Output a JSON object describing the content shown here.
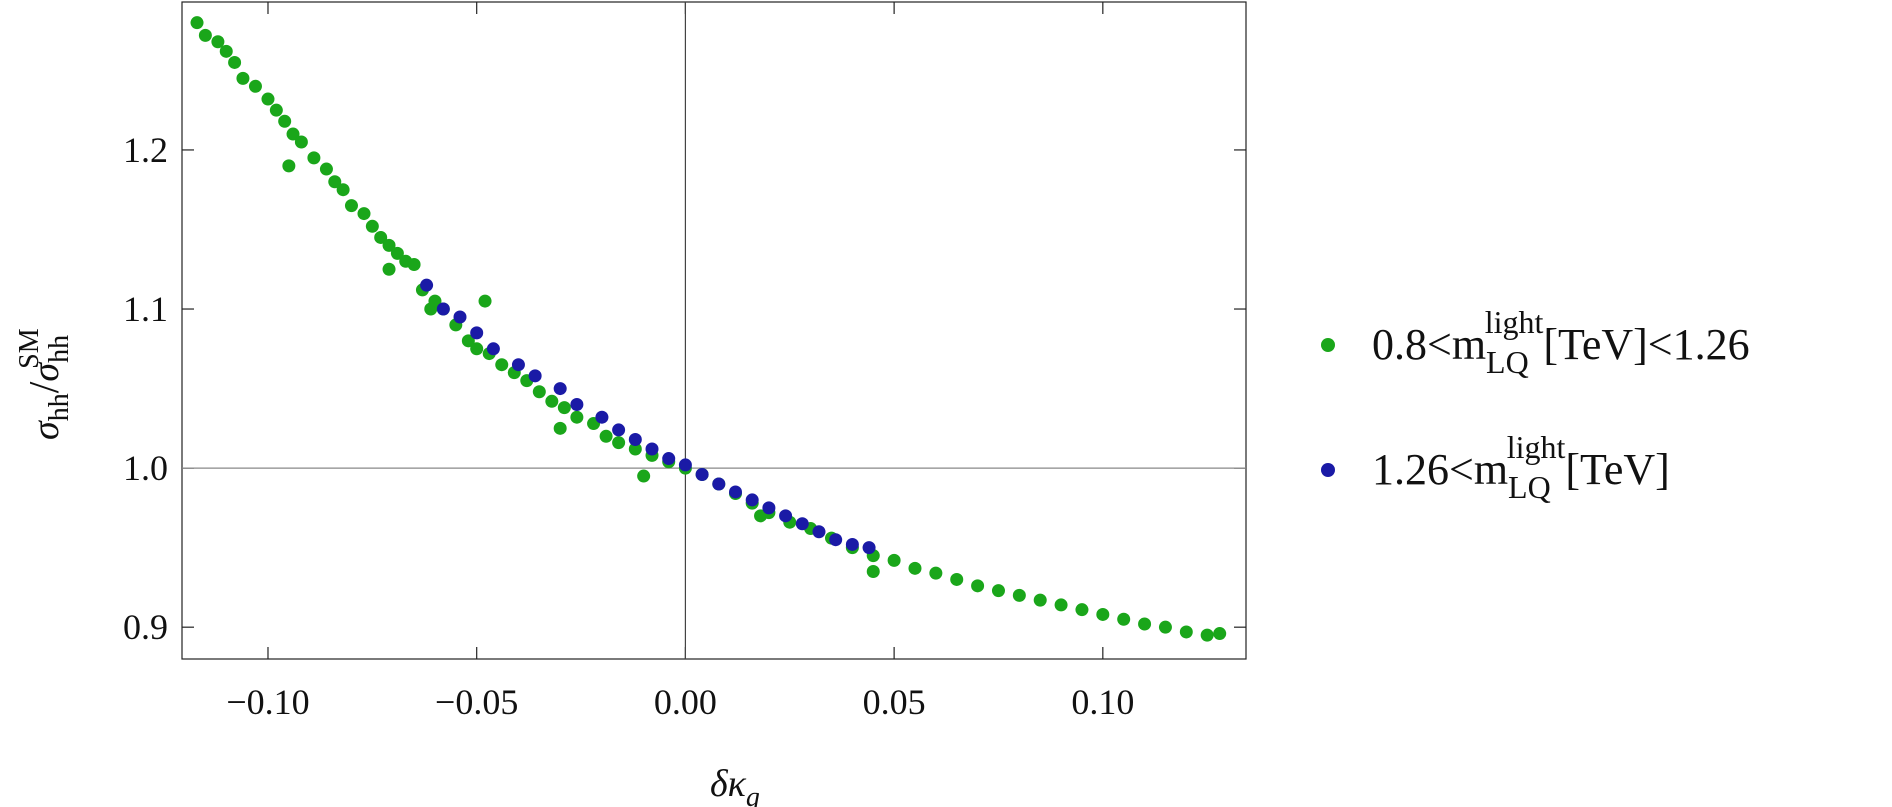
{
  "chart_data": {
    "type": "scatter",
    "xlabel": [
      "δκ",
      "g"
    ],
    "ylabel": [
      "σ",
      "hh",
      "/",
      "σ",
      "hh",
      "SM"
    ],
    "xlim": [
      -0.1206,
      0.1343
    ],
    "ylim": [
      0.88,
      1.293
    ],
    "xticks": [
      {
        "value": -0.1,
        "label": "−0.10"
      },
      {
        "value": -0.05,
        "label": "−0.05"
      },
      {
        "value": 0,
        "label": "0.00"
      },
      {
        "value": 0.05,
        "label": "0.05"
      },
      {
        "value": 0.1,
        "label": "0.10"
      }
    ],
    "yticks": [
      0.9,
      {
        "value": 1.0,
        "label": "1.0"
      },
      1.1,
      1.2
    ],
    "series": [
      {
        "name": [
          "0.8<m",
          "LQ",
          "light",
          "[TeV]<1.26"
        ],
        "color": "#1aa61a",
        "x": [
          -0.117,
          -0.115,
          -0.112,
          -0.11,
          -0.108,
          -0.106,
          -0.103,
          -0.1,
          -0.098,
          -0.096,
          -0.094,
          -0.092,
          -0.089,
          -0.086,
          -0.084,
          -0.082,
          -0.08,
          -0.077,
          -0.075,
          -0.073,
          -0.071,
          -0.069,
          -0.067,
          -0.065,
          -0.063,
          -0.06,
          -0.058,
          -0.055,
          -0.052,
          -0.05,
          -0.047,
          -0.044,
          -0.041,
          -0.038,
          -0.035,
          -0.032,
          -0.029,
          -0.026,
          -0.022,
          -0.019,
          -0.016,
          -0.012,
          -0.008,
          -0.004,
          0.0,
          0.004,
          0.008,
          0.012,
          0.016,
          0.02,
          0.025,
          0.03,
          0.035,
          0.04,
          0.045,
          0.05,
          0.055,
          0.06,
          0.065,
          0.07,
          0.075,
          0.08,
          0.085,
          0.09,
          0.095,
          0.1,
          0.105,
          0.11,
          0.115,
          0.12,
          0.125,
          0.128,
          -0.061,
          -0.048,
          -0.03,
          -0.01,
          0.018,
          0.045,
          -0.095,
          -0.071
        ],
        "values": [
          1.28,
          1.272,
          1.268,
          1.262,
          1.255,
          1.245,
          1.24,
          1.232,
          1.225,
          1.218,
          1.21,
          1.205,
          1.195,
          1.188,
          1.18,
          1.175,
          1.165,
          1.16,
          1.152,
          1.145,
          1.14,
          1.135,
          1.13,
          1.128,
          1.112,
          1.105,
          1.1,
          1.09,
          1.08,
          1.075,
          1.072,
          1.065,
          1.06,
          1.055,
          1.048,
          1.042,
          1.038,
          1.032,
          1.028,
          1.02,
          1.016,
          1.012,
          1.008,
          1.004,
          1.0,
          0.996,
          0.99,
          0.984,
          0.978,
          0.972,
          0.966,
          0.962,
          0.956,
          0.95,
          0.945,
          0.942,
          0.937,
          0.934,
          0.93,
          0.926,
          0.923,
          0.92,
          0.917,
          0.914,
          0.911,
          0.908,
          0.905,
          0.902,
          0.9,
          0.897,
          0.895,
          0.896,
          1.1,
          1.105,
          1.025,
          0.995,
          0.97,
          0.935,
          1.19,
          1.125
        ]
      },
      {
        "name": [
          "1.26<m",
          "LQ",
          "light",
          "[TeV]"
        ],
        "color": "#1a1aa6",
        "x": [
          -0.062,
          -0.058,
          -0.054,
          -0.05,
          -0.046,
          -0.04,
          -0.036,
          -0.03,
          -0.026,
          -0.02,
          -0.016,
          -0.012,
          -0.008,
          -0.004,
          0.0,
          0.004,
          0.008,
          0.012,
          0.016,
          0.02,
          0.024,
          0.028,
          0.032,
          0.036,
          0.04,
          0.044
        ],
        "values": [
          1.115,
          1.1,
          1.095,
          1.085,
          1.075,
          1.065,
          1.058,
          1.05,
          1.04,
          1.032,
          1.024,
          1.018,
          1.012,
          1.006,
          1.002,
          0.996,
          0.99,
          0.985,
          0.98,
          0.975,
          0.97,
          0.965,
          0.96,
          0.955,
          0.952,
          0.95
        ]
      }
    ]
  }
}
